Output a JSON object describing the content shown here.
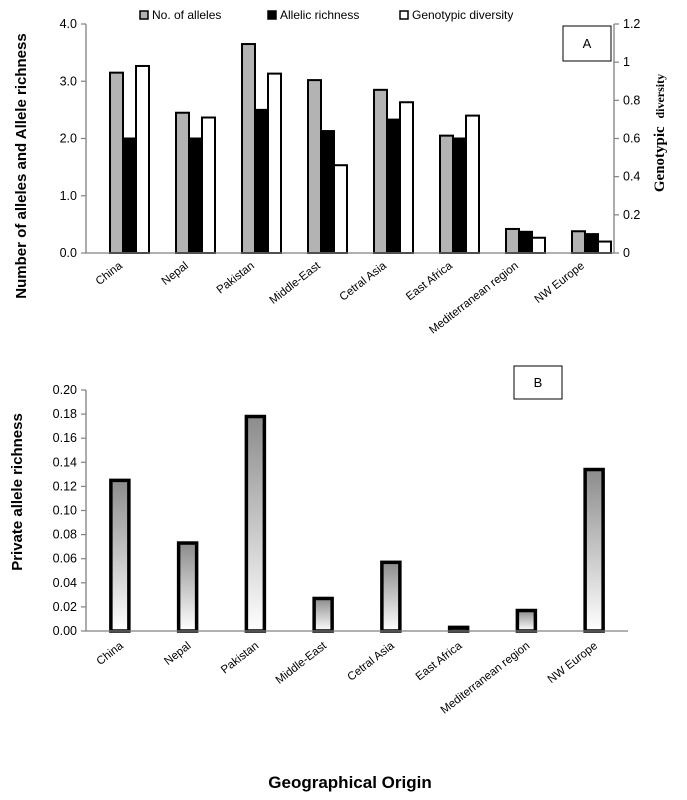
{
  "colors": {
    "alleles": "#b3b3b3",
    "richness": "#000000",
    "diversity": "#ffffff",
    "private_gradient_top": "#8c8c8c",
    "private_gradient_bottom": "#ffffff",
    "axis": "#808080"
  },
  "chart_data": [
    {
      "id": "A",
      "type": "bar",
      "panel_label": "A",
      "categories": [
        "China",
        "Nepal",
        "Pakistan",
        "Middle-East",
        "Cetral Asia",
        "East Africa",
        "Mediterranean region",
        "NW Europe"
      ],
      "ylabel": "Number of alleles and Allele richness",
      "y2label_parts": [
        "Genotypic",
        "diversity"
      ],
      "ylim": [
        0,
        4
      ],
      "yticks": [
        "0.0",
        "1.0",
        "2.0",
        "3.0",
        "4.0"
      ],
      "y2lim": [
        0,
        1.2
      ],
      "y2ticks": [
        "0",
        "0.2",
        "0.4",
        "0.6",
        "0.8",
        "1",
        "1.2"
      ],
      "legend_position": "top",
      "grid": false,
      "series": [
        {
          "name": "No. of alleles",
          "axis": "left",
          "values": [
            3.15,
            2.45,
            3.65,
            3.02,
            2.85,
            2.05,
            0.42,
            0.38
          ]
        },
        {
          "name": "Allelic richness",
          "axis": "left",
          "values": [
            2.0,
            2.0,
            2.5,
            2.13,
            2.33,
            2.0,
            0.37,
            0.33
          ]
        },
        {
          "name": "Genotypic diversity",
          "axis": "right",
          "values": [
            0.98,
            0.71,
            0.94,
            0.46,
            0.79,
            0.72,
            0.08,
            0.06
          ]
        }
      ]
    },
    {
      "id": "B",
      "type": "bar",
      "panel_label": "B",
      "categories": [
        "China",
        "Nepal",
        "Pakistan",
        "Middle-East",
        "Cetral Asia",
        "East Africa",
        "Mediterranean region",
        "NW Europe"
      ],
      "ylabel": "Private allele richness",
      "xlabel": "Geographical Origin",
      "ylim": [
        0,
        0.2
      ],
      "yticks": [
        "0.00",
        "0.02",
        "0.04",
        "0.06",
        "0.08",
        "0.10",
        "0.12",
        "0.14",
        "0.16",
        "0.18",
        "0.20"
      ],
      "grid": false,
      "values": [
        0.125,
        0.073,
        0.178,
        0.027,
        0.057,
        0.003,
        0.017,
        0.134
      ]
    }
  ]
}
